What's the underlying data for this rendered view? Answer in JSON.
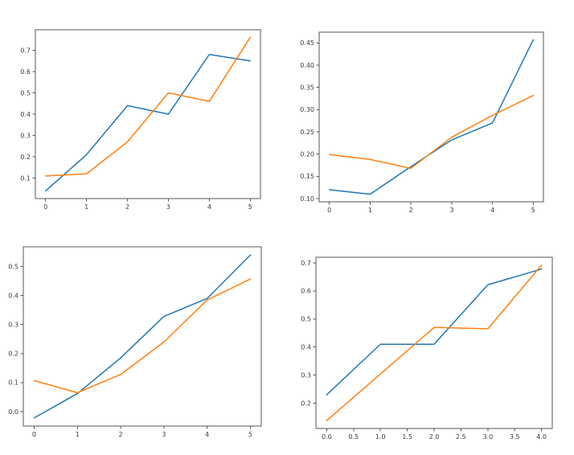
{
  "colors": {
    "background": "#ffffff",
    "series_blue": "#1f77b4",
    "series_orange": "#ff7f0e",
    "spine": "#555555",
    "tick_label": "#3a3a3a"
  },
  "chart_data": [
    {
      "id": "top-left",
      "type": "line",
      "title": "",
      "xlabel": "",
      "ylabel": "",
      "grid": false,
      "legend": null,
      "x": [
        0,
        1,
        2,
        3,
        4,
        5
      ],
      "series": [
        {
          "name": "line-1-blue",
          "color": "#1f77b4",
          "values": [
            0.04,
            0.21,
            0.44,
            0.4,
            0.68,
            0.65
          ]
        },
        {
          "name": "line-2-orange",
          "color": "#ff7f0e",
          "values": [
            0.11,
            0.12,
            0.27,
            0.5,
            0.46,
            0.76
          ]
        }
      ],
      "xlim": [
        -0.25,
        5.25
      ],
      "ylim": [
        0.004,
        0.796
      ],
      "xticks": [
        0,
        1,
        2,
        3,
        4,
        5
      ],
      "xtick_labels": [
        "0",
        "1",
        "2",
        "3",
        "4",
        "5"
      ],
      "yticks": [
        0.1,
        0.2,
        0.3,
        0.4,
        0.5,
        0.6,
        0.7
      ],
      "ytick_labels": [
        "0.1",
        "0.2",
        "0.3",
        "0.4",
        "0.5",
        "0.6",
        "0.7"
      ]
    },
    {
      "id": "top-right",
      "type": "line",
      "title": "",
      "xlabel": "",
      "ylabel": "",
      "grid": false,
      "legend": null,
      "x": [
        0,
        1,
        2,
        3,
        4,
        5
      ],
      "series": [
        {
          "name": "line-1-blue",
          "color": "#1f77b4",
          "values": [
            0.12,
            0.11,
            0.172,
            0.232,
            0.27,
            0.457
          ]
        },
        {
          "name": "line-2-orange",
          "color": "#ff7f0e",
          "values": [
            0.199,
            0.188,
            0.168,
            0.238,
            0.287,
            0.332
          ]
        }
      ],
      "xlim": [
        -0.25,
        5.25
      ],
      "ylim": [
        0.093,
        0.474
      ],
      "xticks": [
        0,
        1,
        2,
        3,
        4,
        5
      ],
      "xtick_labels": [
        "0",
        "1",
        "2",
        "3",
        "4",
        "5"
      ],
      "yticks": [
        0.1,
        0.15,
        0.2,
        0.25,
        0.3,
        0.35,
        0.4,
        0.45
      ],
      "ytick_labels": [
        "0.10",
        "0.15",
        "0.20",
        "0.25",
        "0.30",
        "0.35",
        "0.40",
        "0.45"
      ]
    },
    {
      "id": "bottom-left",
      "type": "line",
      "title": "",
      "xlabel": "",
      "ylabel": "",
      "grid": false,
      "legend": null,
      "x": [
        0,
        1,
        2,
        3,
        4,
        5
      ],
      "series": [
        {
          "name": "line-1-blue",
          "color": "#1f77b4",
          "values": [
            -0.022,
            0.062,
            0.185,
            0.328,
            0.39,
            0.54
          ]
        },
        {
          "name": "line-2-orange",
          "color": "#ff7f0e",
          "values": [
            0.107,
            0.065,
            0.128,
            0.24,
            0.385,
            0.457
          ]
        }
      ],
      "xlim": [
        -0.25,
        5.25
      ],
      "ylim": [
        -0.05,
        0.568
      ],
      "xticks": [
        0,
        1,
        2,
        3,
        4,
        5
      ],
      "xtick_labels": [
        "0",
        "1",
        "2",
        "3",
        "4",
        "5"
      ],
      "yticks": [
        0.0,
        0.1,
        0.2,
        0.3,
        0.4,
        0.5
      ],
      "ytick_labels": [
        "0.0",
        "0.1",
        "0.2",
        "0.3",
        "0.4",
        "0.5"
      ]
    },
    {
      "id": "bottom-right",
      "type": "line",
      "title": "",
      "xlabel": "",
      "ylabel": "",
      "grid": false,
      "legend": null,
      "x": [
        0,
        1,
        2,
        3,
        4
      ],
      "series": [
        {
          "name": "line-1-blue",
          "color": "#1f77b4",
          "values": [
            0.23,
            0.41,
            0.41,
            0.622,
            0.678
          ]
        },
        {
          "name": "line-2-orange",
          "color": "#ff7f0e",
          "values": [
            0.138,
            0.304,
            0.47,
            0.465,
            0.692
          ]
        }
      ],
      "xlim": [
        -0.2,
        4.2
      ],
      "ylim": [
        0.11,
        0.72
      ],
      "xticks": [
        0.0,
        0.5,
        1.0,
        1.5,
        2.0,
        2.5,
        3.0,
        3.5,
        4.0
      ],
      "xtick_labels": [
        "0.0",
        "0.5",
        "1.0",
        "1.5",
        "2.0",
        "2.5",
        "3.0",
        "3.5",
        "4.0"
      ],
      "yticks": [
        0.2,
        0.3,
        0.4,
        0.5,
        0.6,
        0.7
      ],
      "ytick_labels": [
        "0.2",
        "0.3",
        "0.4",
        "0.5",
        "0.6",
        "0.7"
      ]
    }
  ]
}
